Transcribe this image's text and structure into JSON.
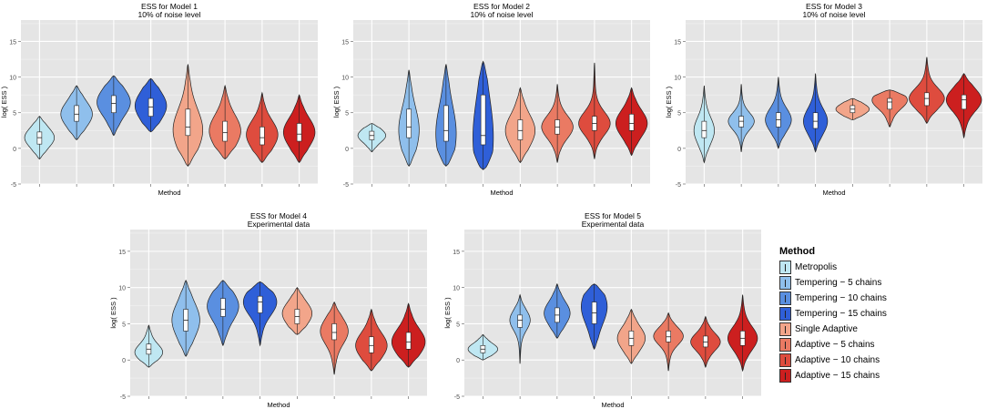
{
  "legend": {
    "title": "Method",
    "items": [
      {
        "label": "Metropolis",
        "color": "#bfe7f2"
      },
      {
        "label": "Tempering − 5 chains",
        "color": "#8fbfec"
      },
      {
        "label": "Tempering − 10 chains",
        "color": "#5a8fe0"
      },
      {
        "label": "Tempering − 15 chains",
        "color": "#2f5fd8"
      },
      {
        "label": "Single Adaptive",
        "color": "#f2a58a"
      },
      {
        "label": "Adaptive − 5 chains",
        "color": "#ea7a63"
      },
      {
        "label": "Adaptive − 10 chains",
        "color": "#de4c3e"
      },
      {
        "label": "Adaptive − 15 chains",
        "color": "#cc1f1f"
      }
    ]
  },
  "chart_data": [
    {
      "type": "violin",
      "title": "ESS for Model 1",
      "subtitle": "10% of noise level",
      "xlabel": "Method",
      "ylabel": "log( ESS )",
      "ylim": [
        -5,
        18
      ],
      "yticks": [
        -5,
        0,
        5,
        10,
        15
      ],
      "series": [
        {
          "name": "Metropolis",
          "min": -1.5,
          "max": 4.5,
          "median": 1.5,
          "q1": 0.6,
          "q3": 2.3,
          "mode": 1.5,
          "width": 0.8
        },
        {
          "name": "Tempering − 5 chains",
          "min": 1.2,
          "max": 8.8,
          "median": 4.8,
          "q1": 3.8,
          "q3": 6.0,
          "mode": 4.8,
          "width": 0.85
        },
        {
          "name": "Tempering − 10 chains",
          "min": 1.8,
          "max": 10.2,
          "median": 6.3,
          "q1": 5.0,
          "q3": 7.4,
          "mode": 6.5,
          "width": 0.9
        },
        {
          "name": "Tempering − 15 chains",
          "min": 2.3,
          "max": 9.8,
          "median": 5.8,
          "q1": 4.5,
          "q3": 7.0,
          "mode": 6.0,
          "width": 0.85
        },
        {
          "name": "Single Adaptive",
          "min": -2.5,
          "max": 11.8,
          "median": 3.0,
          "q1": 1.8,
          "q3": 5.5,
          "mode": 2.5,
          "width": 0.8
        },
        {
          "name": "Adaptive − 5 chains",
          "min": -1.5,
          "max": 8.8,
          "median": 2.2,
          "q1": 1.0,
          "q3": 3.8,
          "mode": 2.5,
          "width": 0.85
        },
        {
          "name": "Adaptive − 10 chains",
          "min": -2.0,
          "max": 7.8,
          "median": 1.5,
          "q1": 0.5,
          "q3": 3.0,
          "mode": 2.0,
          "width": 0.85
        },
        {
          "name": "Adaptive − 15 chains",
          "min": -2.0,
          "max": 7.5,
          "median": 2.0,
          "q1": 1.0,
          "q3": 3.5,
          "mode": 2.3,
          "width": 0.85
        }
      ]
    },
    {
      "type": "violin",
      "title": "ESS for Model 2",
      "subtitle": "10% of noise level",
      "xlabel": "Method",
      "ylabel": "log( ESS )",
      "ylim": [
        -5,
        18
      ],
      "yticks": [
        -5,
        0,
        5,
        10,
        15
      ],
      "series": [
        {
          "name": "Metropolis",
          "min": -0.5,
          "max": 3.5,
          "median": 1.8,
          "q1": 1.2,
          "q3": 2.4,
          "mode": 1.8,
          "width": 0.75
        },
        {
          "name": "Tempering − 5 chains",
          "min": -2.5,
          "max": 11.0,
          "median": 3.0,
          "q1": 1.5,
          "q3": 5.5,
          "mode": 2.5,
          "width": 0.55
        },
        {
          "name": "Tempering − 10 chains",
          "min": -2.5,
          "max": 11.8,
          "median": 2.5,
          "q1": 1.0,
          "q3": 6.0,
          "mode": 2.0,
          "width": 0.55
        },
        {
          "name": "Tempering − 15 chains",
          "min": -3.0,
          "max": 12.2,
          "median": 1.8,
          "q1": 0.5,
          "q3": 7.5,
          "mode": 1.5,
          "width": 0.55
        },
        {
          "name": "Single Adaptive",
          "min": -2.0,
          "max": 8.5,
          "median": 2.5,
          "q1": 1.2,
          "q3": 4.0,
          "mode": 2.5,
          "width": 0.8
        },
        {
          "name": "Adaptive − 5 chains",
          "min": -2.0,
          "max": 9.0,
          "median": 3.0,
          "q1": 2.0,
          "q3": 4.0,
          "mode": 3.0,
          "width": 0.85
        },
        {
          "name": "Adaptive − 10 chains",
          "min": -1.5,
          "max": 12.0,
          "median": 3.5,
          "q1": 2.5,
          "q3": 4.5,
          "mode": 3.5,
          "width": 0.85
        },
        {
          "name": "Adaptive − 15 chains",
          "min": -1.0,
          "max": 8.5,
          "median": 3.5,
          "q1": 2.5,
          "q3": 4.8,
          "mode": 3.5,
          "width": 0.85
        }
      ]
    },
    {
      "type": "violin",
      "title": "ESS for Model 3",
      "subtitle": "10% of noise level",
      "xlabel": "Method",
      "ylabel": "log( ESS )",
      "ylim": [
        -5,
        18
      ],
      "yticks": [
        -5,
        0,
        5,
        10,
        15
      ],
      "series": [
        {
          "name": "Metropolis",
          "min": -2.0,
          "max": 8.8,
          "median": 2.5,
          "q1": 1.5,
          "q3": 3.8,
          "mode": 2.5,
          "width": 0.55
        },
        {
          "name": "Tempering − 5 chains",
          "min": -0.5,
          "max": 9.0,
          "median": 3.8,
          "q1": 3.0,
          "q3": 4.5,
          "mode": 3.8,
          "width": 0.7
        },
        {
          "name": "Tempering − 10 chains",
          "min": 0.0,
          "max": 10.0,
          "median": 4.0,
          "q1": 3.0,
          "q3": 5.0,
          "mode": 4.0,
          "width": 0.7
        },
        {
          "name": "Tempering − 15 chains",
          "min": -0.5,
          "max": 10.5,
          "median": 3.8,
          "q1": 2.8,
          "q3": 5.0,
          "mode": 3.8,
          "width": 0.65
        },
        {
          "name": "Single Adaptive",
          "min": 4.0,
          "max": 7.0,
          "median": 5.5,
          "q1": 5.0,
          "q3": 6.0,
          "mode": 5.5,
          "width": 0.9
        },
        {
          "name": "Adaptive − 5 chains",
          "min": 3.0,
          "max": 8.2,
          "median": 6.5,
          "q1": 5.5,
          "q3": 7.0,
          "mode": 6.8,
          "width": 0.95
        },
        {
          "name": "Adaptive − 10 chains",
          "min": 3.5,
          "max": 12.8,
          "median": 7.0,
          "q1": 6.0,
          "q3": 7.8,
          "mode": 7.0,
          "width": 0.95
        },
        {
          "name": "Adaptive − 15 chains",
          "min": 1.5,
          "max": 10.5,
          "median": 6.8,
          "q1": 5.5,
          "q3": 7.5,
          "mode": 6.8,
          "width": 0.95
        }
      ]
    },
    {
      "type": "violin",
      "title": "ESS for Model 4",
      "subtitle": "Experimental data",
      "xlabel": "Method",
      "ylabel": "log( ESS )",
      "ylim": [
        -5,
        18
      ],
      "yticks": [
        -5,
        0,
        5,
        10,
        15
      ],
      "series": [
        {
          "name": "Metropolis",
          "min": -1.0,
          "max": 4.8,
          "median": 1.5,
          "q1": 0.8,
          "q3": 2.2,
          "mode": 1.0,
          "width": 0.75
        },
        {
          "name": "Tempering − 5 chains",
          "min": 0.5,
          "max": 11.0,
          "median": 5.5,
          "q1": 4.0,
          "q3": 7.0,
          "mode": 5.5,
          "width": 0.75
        },
        {
          "name": "Tempering − 10 chains",
          "min": 2.0,
          "max": 11.0,
          "median": 7.0,
          "q1": 6.0,
          "q3": 8.5,
          "mode": 7.5,
          "width": 0.85
        },
        {
          "name": "Tempering − 15 chains",
          "min": 2.0,
          "max": 10.8,
          "median": 8.0,
          "q1": 6.5,
          "q3": 8.8,
          "mode": 8.0,
          "width": 0.9
        },
        {
          "name": "Single Adaptive",
          "min": 3.5,
          "max": 10.0,
          "median": 6.0,
          "q1": 5.0,
          "q3": 7.0,
          "mode": 6.5,
          "width": 0.8
        },
        {
          "name": "Adaptive − 5 chains",
          "min": -2.0,
          "max": 8.0,
          "median": 3.8,
          "q1": 2.8,
          "q3": 5.0,
          "mode": 4.0,
          "width": 0.75
        },
        {
          "name": "Adaptive − 10 chains",
          "min": -1.5,
          "max": 7.0,
          "median": 2.0,
          "q1": 1.0,
          "q3": 3.2,
          "mode": 2.0,
          "width": 0.85
        },
        {
          "name": "Adaptive − 15 chains",
          "min": -1.0,
          "max": 7.8,
          "median": 2.5,
          "q1": 1.5,
          "q3": 3.8,
          "mode": 2.5,
          "width": 0.9
        }
      ]
    },
    {
      "type": "violin",
      "title": "ESS for Model 5",
      "subtitle": "Experimental data",
      "xlabel": "Method",
      "ylabel": "log( ESS )",
      "ylim": [
        -5,
        18
      ],
      "yticks": [
        -5,
        0,
        5,
        10,
        15
      ],
      "series": [
        {
          "name": "Metropolis",
          "min": 0.0,
          "max": 3.5,
          "median": 1.5,
          "q1": 1.0,
          "q3": 2.0,
          "mode": 1.5,
          "width": 0.8
        },
        {
          "name": "Tempering − 5 chains",
          "min": -0.5,
          "max": 9.0,
          "median": 5.5,
          "q1": 4.5,
          "q3": 6.2,
          "mode": 5.5,
          "width": 0.55
        },
        {
          "name": "Tempering − 10 chains",
          "min": 3.0,
          "max": 10.5,
          "median": 6.2,
          "q1": 5.2,
          "q3": 7.2,
          "mode": 6.5,
          "width": 0.7
        },
        {
          "name": "Tempering − 15 chains",
          "min": 1.5,
          "max": 10.5,
          "median": 6.5,
          "q1": 5.0,
          "q3": 8.0,
          "mode": 7.5,
          "width": 0.7
        },
        {
          "name": "Single Adaptive",
          "min": -0.5,
          "max": 7.0,
          "median": 3.0,
          "q1": 2.0,
          "q3": 4.0,
          "mode": 3.0,
          "width": 0.75
        },
        {
          "name": "Adaptive − 5 chains",
          "min": -1.5,
          "max": 6.5,
          "median": 3.2,
          "q1": 2.5,
          "q3": 4.0,
          "mode": 3.3,
          "width": 0.8
        },
        {
          "name": "Adaptive − 10 chains",
          "min": -1.0,
          "max": 6.0,
          "median": 2.5,
          "q1": 1.8,
          "q3": 3.3,
          "mode": 2.5,
          "width": 0.8
        },
        {
          "name": "Adaptive − 15 chains",
          "min": -1.5,
          "max": 9.0,
          "median": 3.0,
          "q1": 2.0,
          "q3": 4.0,
          "mode": 3.0,
          "width": 0.8
        }
      ]
    }
  ]
}
